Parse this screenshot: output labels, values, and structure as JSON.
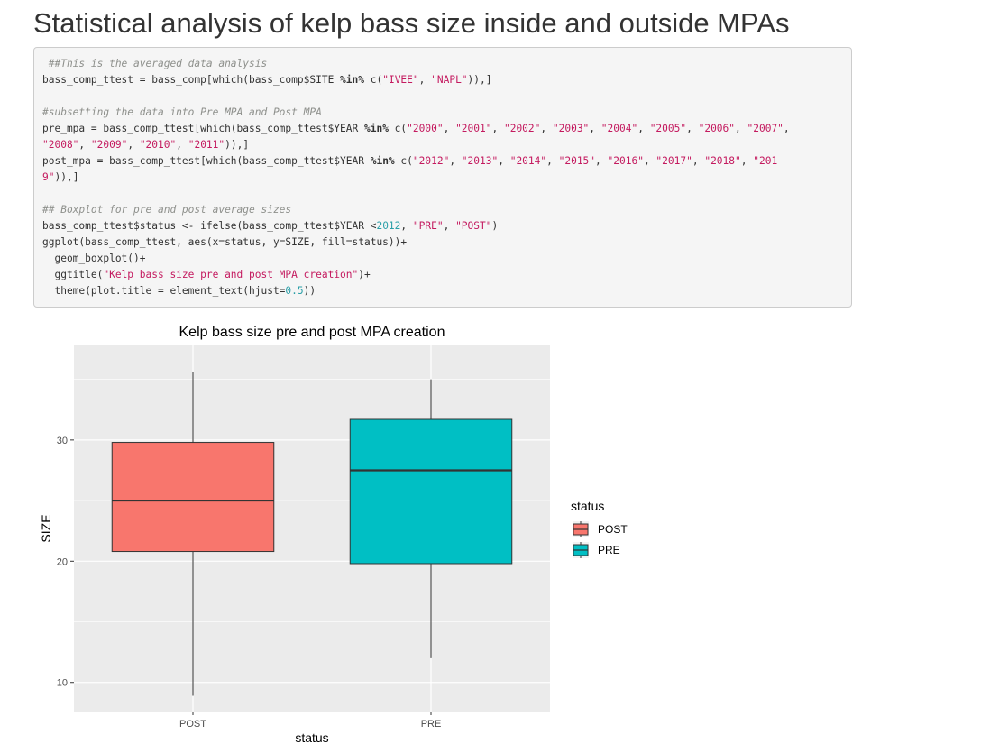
{
  "page": {
    "title": "Statistical analysis of kelp bass size inside and outside MPAs"
  },
  "code": {
    "lines": [
      [
        {
          "t": "comment",
          "v": " ##This is the averaged data analysis"
        }
      ],
      [
        {
          "t": "plain",
          "v": "bass_comp_ttest = bass_comp[which(bass_comp$SITE "
        },
        {
          "t": "kw",
          "v": "%in%"
        },
        {
          "t": "plain",
          "v": " c("
        },
        {
          "t": "string",
          "v": "\"IVEE\""
        },
        {
          "t": "plain",
          "v": ", "
        },
        {
          "t": "string",
          "v": "\"NAPL\""
        },
        {
          "t": "plain",
          "v": ")),]"
        }
      ],
      [],
      [
        {
          "t": "comment",
          "v": "#subsetting the data into Pre MPA and Post MPA"
        }
      ],
      [
        {
          "t": "plain",
          "v": "pre_mpa = bass_comp_ttest[which(bass_comp_ttest$YEAR "
        },
        {
          "t": "kw",
          "v": "%in%"
        },
        {
          "t": "plain",
          "v": " c("
        },
        {
          "t": "string",
          "v": "\"2000\""
        },
        {
          "t": "plain",
          "v": ", "
        },
        {
          "t": "string",
          "v": "\"2001\""
        },
        {
          "t": "plain",
          "v": ", "
        },
        {
          "t": "string",
          "v": "\"2002\""
        },
        {
          "t": "plain",
          "v": ", "
        },
        {
          "t": "string",
          "v": "\"2003\""
        },
        {
          "t": "plain",
          "v": ", "
        },
        {
          "t": "string",
          "v": "\"2004\""
        },
        {
          "t": "plain",
          "v": ", "
        },
        {
          "t": "string",
          "v": "\"2005\""
        },
        {
          "t": "plain",
          "v": ", "
        },
        {
          "t": "string",
          "v": "\"2006\""
        },
        {
          "t": "plain",
          "v": ", "
        },
        {
          "t": "string",
          "v": "\"2007\""
        },
        {
          "t": "plain",
          "v": ","
        }
      ],
      [
        {
          "t": "string",
          "v": "\"2008\""
        },
        {
          "t": "plain",
          "v": ", "
        },
        {
          "t": "string",
          "v": "\"2009\""
        },
        {
          "t": "plain",
          "v": ", "
        },
        {
          "t": "string",
          "v": "\"2010\""
        },
        {
          "t": "plain",
          "v": ", "
        },
        {
          "t": "string",
          "v": "\"2011\""
        },
        {
          "t": "plain",
          "v": ")),]"
        }
      ],
      [
        {
          "t": "plain",
          "v": "post_mpa = bass_comp_ttest[which(bass_comp_ttest$YEAR "
        },
        {
          "t": "kw",
          "v": "%in%"
        },
        {
          "t": "plain",
          "v": " c("
        },
        {
          "t": "string",
          "v": "\"2012\""
        },
        {
          "t": "plain",
          "v": ", "
        },
        {
          "t": "string",
          "v": "\"2013\""
        },
        {
          "t": "plain",
          "v": ", "
        },
        {
          "t": "string",
          "v": "\"2014\""
        },
        {
          "t": "plain",
          "v": ", "
        },
        {
          "t": "string",
          "v": "\"2015\""
        },
        {
          "t": "plain",
          "v": ", "
        },
        {
          "t": "string",
          "v": "\"2016\""
        },
        {
          "t": "plain",
          "v": ", "
        },
        {
          "t": "string",
          "v": "\"2017\""
        },
        {
          "t": "plain",
          "v": ", "
        },
        {
          "t": "string",
          "v": "\"2018\""
        },
        {
          "t": "plain",
          "v": ", "
        },
        {
          "t": "string",
          "v": "\"201"
        }
      ],
      [
        {
          "t": "string",
          "v": "9\""
        },
        {
          "t": "plain",
          "v": ")),]"
        }
      ],
      [],
      [
        {
          "t": "comment",
          "v": "## Boxplot for pre and post average sizes"
        }
      ],
      [
        {
          "t": "plain",
          "v": "bass_comp_ttest$status <- ifelse(bass_comp_ttest$YEAR <"
        },
        {
          "t": "number",
          "v": "2012"
        },
        {
          "t": "plain",
          "v": ", "
        },
        {
          "t": "string",
          "v": "\"PRE\""
        },
        {
          "t": "plain",
          "v": ", "
        },
        {
          "t": "string",
          "v": "\"POST\""
        },
        {
          "t": "plain",
          "v": ")"
        }
      ],
      [
        {
          "t": "plain",
          "v": "ggplot(bass_comp_ttest, aes(x=status, y=SIZE, fill=status))+"
        }
      ],
      [
        {
          "t": "plain",
          "v": "  geom_boxplot()+"
        }
      ],
      [
        {
          "t": "plain",
          "v": "  ggtitle("
        },
        {
          "t": "string",
          "v": "\"Kelp bass size pre and post MPA creation\""
        },
        {
          "t": "plain",
          "v": ")+"
        }
      ],
      [
        {
          "t": "plain",
          "v": "  theme(plot.title = element_text(hjust="
        },
        {
          "t": "number",
          "v": "0.5"
        },
        {
          "t": "plain",
          "v": "))"
        }
      ]
    ]
  },
  "chart_data": {
    "type": "boxplot",
    "title": "Kelp bass size pre and post MPA creation",
    "xlabel": "status",
    "ylabel": "SIZE",
    "categories": [
      "POST",
      "PRE"
    ],
    "ylim": [
      7.6,
      37.8
    ],
    "yticks": [
      10,
      20,
      30
    ],
    "series": [
      {
        "name": "POST",
        "color": "#F8766D",
        "min": 8.9,
        "q1": 20.8,
        "median": 25.0,
        "q3": 29.8,
        "max": 35.6
      },
      {
        "name": "PRE",
        "color": "#00BFC4",
        "min": 12.0,
        "q1": 19.8,
        "median": 27.5,
        "q3": 31.7,
        "max": 35.0
      }
    ],
    "legend": {
      "title": "status",
      "position": "right",
      "entries": [
        "POST",
        "PRE"
      ]
    },
    "grid": true,
    "panel_background": "#EBEBEB"
  }
}
